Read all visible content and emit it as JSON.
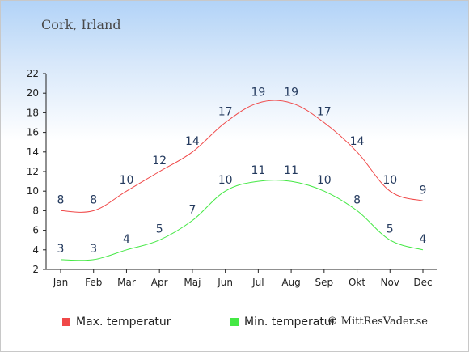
{
  "location": "Cork, Irland",
  "legend": {
    "max_label": "Max. temperatur",
    "min_label": "Min. temperatur"
  },
  "credit": "© MittResVader.se",
  "colors": {
    "max": "#f04848",
    "min": "#44e844",
    "label": "#243a5e"
  },
  "chart_data": {
    "type": "line",
    "categories": [
      "Jan",
      "Feb",
      "Mar",
      "Apr",
      "Maj",
      "Jun",
      "Jul",
      "Aug",
      "Sep",
      "Okt",
      "Nov",
      "Dec"
    ],
    "series": [
      {
        "name": "Max. temperatur",
        "values": [
          8,
          8,
          10,
          12,
          14,
          17,
          19,
          19,
          17,
          14,
          10,
          9
        ]
      },
      {
        "name": "Min. temperatur",
        "values": [
          3,
          3,
          4,
          5,
          7,
          10,
          11,
          11,
          10,
          8,
          5,
          4
        ]
      }
    ],
    "yticks": [
      2,
      4,
      6,
      8,
      10,
      12,
      14,
      16,
      18,
      20,
      22
    ],
    "ylim": [
      2,
      22
    ],
    "grid": false,
    "legend_position": "bottom-left"
  }
}
